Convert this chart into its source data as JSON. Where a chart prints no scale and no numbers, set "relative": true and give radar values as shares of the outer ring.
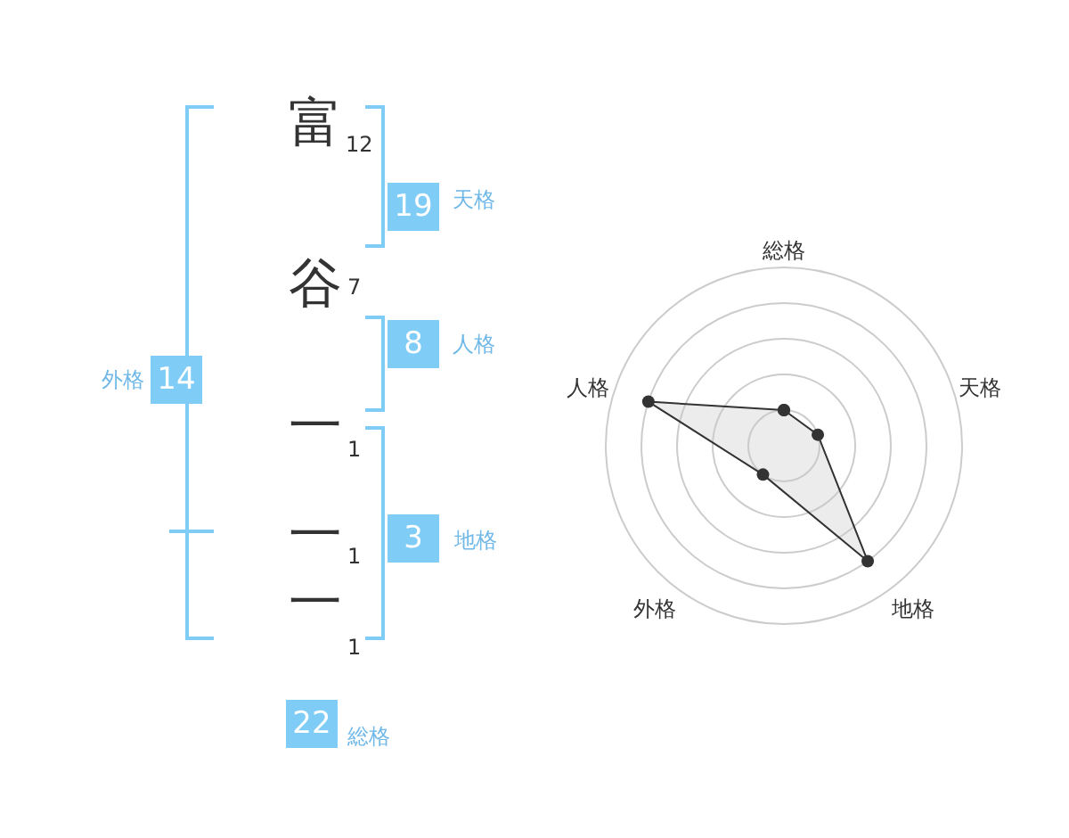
{
  "chart_data": [
    {
      "type": "other",
      "annotations": [
        "富",
        "12",
        "谷",
        "7",
        "一",
        "1",
        "一",
        "1",
        "一",
        "1",
        "19",
        "天格",
        "8",
        "人格",
        "3",
        "地格",
        "14",
        "外格",
        "22",
        "総格"
      ]
    },
    {
      "type": "radar",
      "relative": true,
      "categories": [
        "総格",
        "天格",
        "地格",
        "外格",
        "人格"
      ],
      "series": [
        {
          "color": "#333333",
          "values": [
            0.2,
            0.2,
            0.8,
            0.2,
            0.8
          ]
        }
      ],
      "marker": "circle"
    }
  ]
}
